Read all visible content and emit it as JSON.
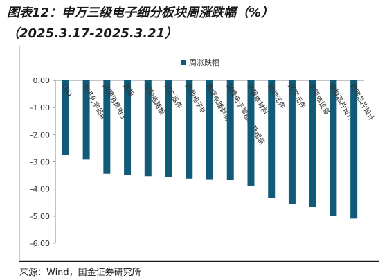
{
  "header": {
    "title": "图表12：申万三级电子细分板块周涨跌幅（%）",
    "subtitle": "（2025.3.17-2025.3.21）"
  },
  "footer": {
    "source": "来源：Wind，国金证券研究所"
  },
  "colors": {
    "bar": "#125b78",
    "axis": "#888888"
  },
  "chart_data": {
    "type": "bar",
    "legend": "周涨跌幅",
    "legend_position": "top-center",
    "categories": [
      "LED",
      "电子化学品Ⅲ",
      "品牌消费电子",
      "面板",
      "印制电路板",
      "分立器件",
      "其他电子Ⅲ",
      "集成电路封测",
      "消费电子零部件及组装",
      "半导体材料",
      "被动元件",
      "光学元件",
      "半导体设备",
      "模拟芯片设计",
      "数字芯片设计"
    ],
    "values": [
      -2.75,
      -2.92,
      -3.44,
      -3.49,
      -3.53,
      -3.57,
      -3.62,
      -3.64,
      -3.67,
      -3.88,
      -4.33,
      -4.56,
      -4.66,
      -5.0,
      -5.09
    ],
    "yticks": [
      "0.00",
      "-1.00",
      "-2.00",
      "-3.00",
      "-4.00",
      "-5.00",
      "-6.00"
    ],
    "ylim": [
      -6,
      0
    ],
    "grid": false
  }
}
